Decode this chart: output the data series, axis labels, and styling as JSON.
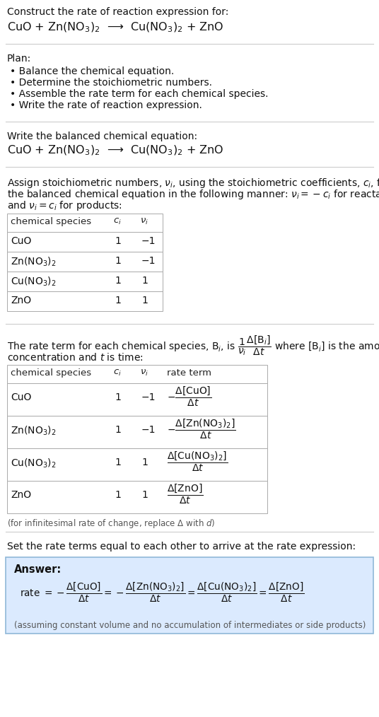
{
  "bg_color": "#ffffff",
  "title_line1": "Construct the rate of reaction expression for:",
  "reaction_equation": "CuO + Zn(NO$_3$)$_2$  ⟶  Cu(NO$_3$)$_2$ + ZnO",
  "plan_header": "Plan:",
  "plan_items": [
    "• Balance the chemical equation.",
    "• Determine the stoichiometric numbers.",
    "• Assemble the rate term for each chemical species.",
    "• Write the rate of reaction expression."
  ],
  "balanced_header": "Write the balanced chemical equation:",
  "balanced_eq": "CuO + Zn(NO$_3$)$_2$  ⟶  Cu(NO$_3$)$_2$ + ZnO",
  "table1_headers": [
    "chemical species",
    "$c_i$",
    "$\\nu_i$"
  ],
  "table1_rows": [
    [
      "CuO",
      "1",
      "−1"
    ],
    [
      "Zn(NO$_3$)$_2$",
      "1",
      "−1"
    ],
    [
      "Cu(NO$_3$)$_2$",
      "1",
      "1"
    ],
    [
      "ZnO",
      "1",
      "1"
    ]
  ],
  "table2_headers": [
    "chemical species",
    "$c_i$",
    "$\\nu_i$",
    "rate term"
  ],
  "table2_rows": [
    [
      "CuO",
      "1",
      "−1"
    ],
    [
      "Zn(NO$_3$)$_2$",
      "1",
      "−1"
    ],
    [
      "Cu(NO$_3$)$_2$",
      "1",
      "1"
    ],
    [
      "ZnO",
      "1",
      "1"
    ]
  ],
  "rate_terms": [
    "$-\\dfrac{\\Delta[\\mathrm{CuO}]}{\\Delta t}$",
    "$-\\dfrac{\\Delta[\\mathrm{Zn(NO_3)_2}]}{\\Delta t}$",
    "$\\dfrac{\\Delta[\\mathrm{Cu(NO_3)_2}]}{\\Delta t}$",
    "$\\dfrac{\\Delta[\\mathrm{ZnO}]}{\\Delta t}$"
  ],
  "infinitesimal_note": "(for infinitesimal rate of change, replace Δ with $d$)",
  "set_equal_text": "Set the rate terms equal to each other to arrive at the rate expression:",
  "answer_box_color": "#dbeafe",
  "answer_label": "Answer:",
  "assuming_note": "(assuming constant volume and no accumulation of intermediates or side products)"
}
